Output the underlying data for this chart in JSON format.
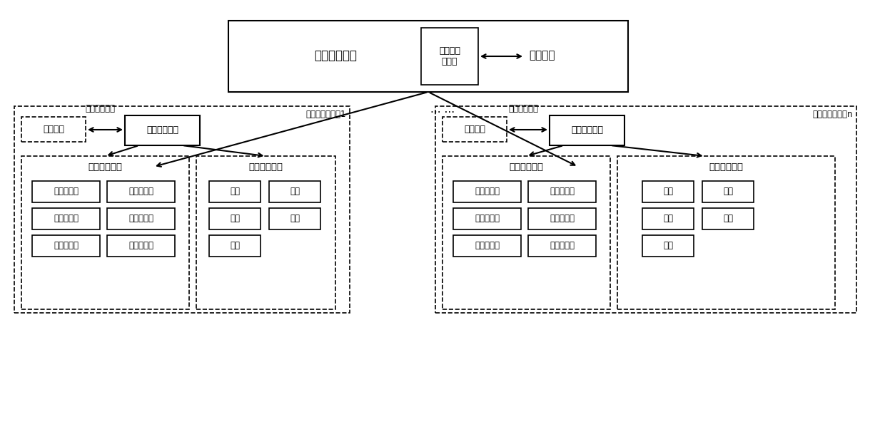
{
  "bg_color": "#ffffff",
  "title_text": "光伏监控系统",
  "hmi_text": "人机交互\n子系统",
  "operator_text": "运维人员",
  "dots_text": "... ...",
  "room1_label": "户外逆变器小室1",
  "roomn_label": "户外逆变器小室n",
  "power_comm_label": "电力内部通信",
  "gen_device_label": "发电设备",
  "comm_unit_label": "通信处理单元",
  "env_collect_label": "环境采集设备",
  "env_linkage_label": "环境联动设备",
  "collect_items_left": [
    [
      "温度采集器",
      "湿度采集器"
    ],
    [
      "水位传感器",
      "图像采集器"
    ],
    [
      "光感传感器",
      "烟感传感器"
    ]
  ],
  "linkage_items_left": [
    [
      "调温",
      "消防"
    ],
    [
      "除湿",
      "照明"
    ],
    [
      "抽水",
      ""
    ]
  ],
  "collect_items_right": [
    [
      "温度采集器",
      "湿度采集器"
    ],
    [
      "水位传感器",
      "图像采集器"
    ],
    [
      "光感传感器",
      "烟感传感器"
    ]
  ],
  "linkage_items_right": [
    [
      "调温",
      "消防"
    ],
    [
      "除湿",
      "照明"
    ],
    [
      "抽水",
      ""
    ]
  ]
}
